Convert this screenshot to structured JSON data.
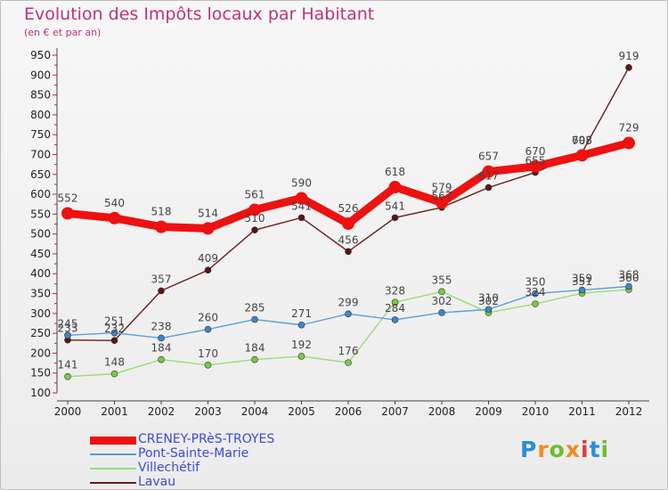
{
  "chart_data": {
    "type": "line",
    "title": "Evolution des Impôts locaux par Habitant",
    "subtitle": "(en € et par an)",
    "x": [
      2000,
      2001,
      2002,
      2003,
      2004,
      2005,
      2006,
      2007,
      2008,
      2009,
      2010,
      2011,
      2012
    ],
    "ylim": [
      100,
      950
    ],
    "yticks": [
      100,
      150,
      200,
      250,
      300,
      350,
      400,
      450,
      500,
      550,
      600,
      650,
      700,
      750,
      800,
      850,
      900,
      950
    ],
    "grid": false,
    "legend_position": "bottom-left",
    "series": [
      {
        "name": "CRENEY-PRèS-TROYES",
        "color": "#ee1111",
        "point_color": "#ee1111",
        "values": [
          552,
          540,
          518,
          514,
          561,
          590,
          526,
          618,
          579,
          657,
          670,
          698,
          729
        ]
      },
      {
        "name": "Pont-Sainte-Marie",
        "color": "#5e9ed6",
        "point_color": "#3d86c6",
        "values": [
          245,
          251,
          238,
          260,
          285,
          271,
          299,
          284,
          302,
          310,
          350,
          359,
          368
        ]
      },
      {
        "name": "Villechétif",
        "color": "#99dd77",
        "point_color": "#77cc44",
        "values": [
          141,
          148,
          184,
          170,
          184,
          192,
          176,
          328,
          355,
          302,
          324,
          351,
          360
        ]
      },
      {
        "name": "Lavau",
        "color": "#6b1a1a",
        "point_color": "#5a1414",
        "values": [
          233,
          232,
          357,
          409,
          510,
          541,
          456,
          541,
          567,
          617,
          655,
          705,
          919
        ]
      }
    ]
  },
  "logo": {
    "letters": [
      "P",
      "r",
      "o",
      "x",
      "i",
      "t",
      "i"
    ],
    "colors": [
      "#2a8fd6",
      "#f28a1b",
      "#6cbf2d",
      "#f28a1b",
      "#e23a3a",
      "#2a8fd6",
      "#6cbf2d"
    ]
  }
}
